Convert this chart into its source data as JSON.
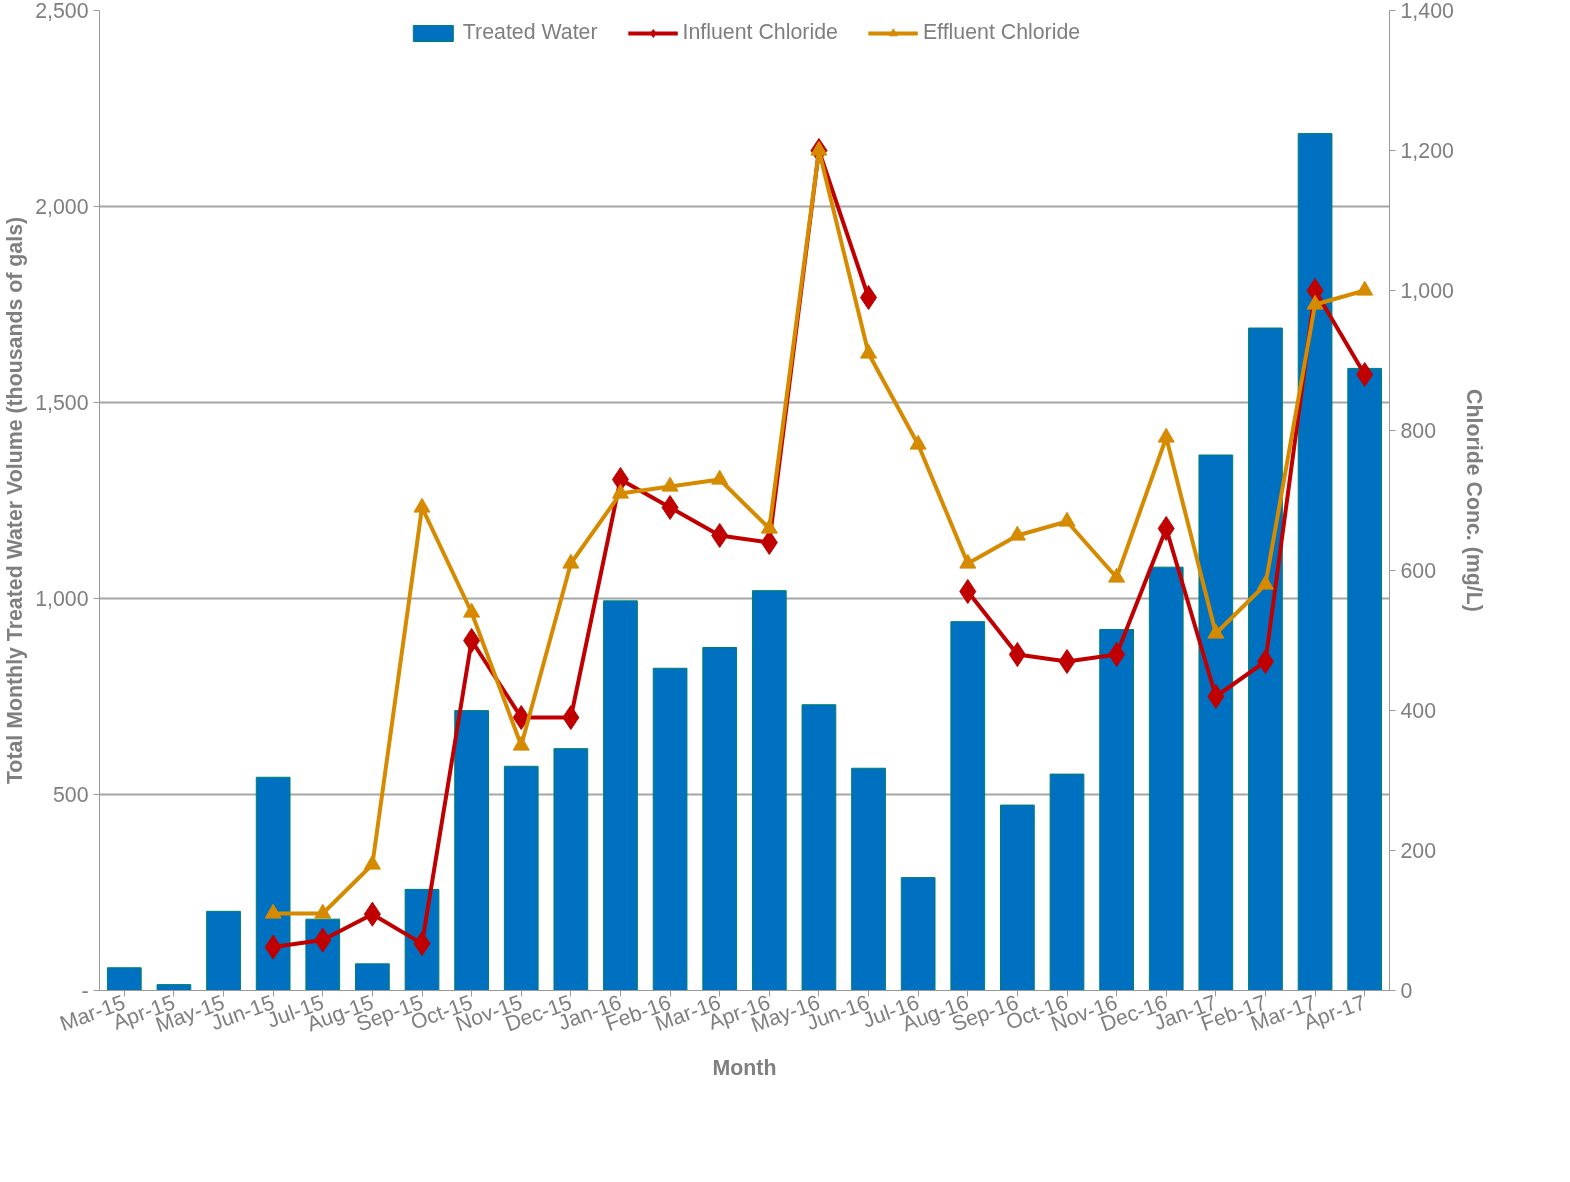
{
  "chart_data": {
    "type": "bar",
    "xlabel": "Month",
    "ylabel": "Total Monthly Treated Water Volume (thousands of gals)",
    "y2label": "Chloride Conc. (mg/L)",
    "categories": [
      "Mar-15",
      "Apr-15",
      "May-15",
      "Jun-15",
      "Jul-15",
      "Aug-15",
      "Sep-15",
      "Oct-15",
      "Nov-15",
      "Dec-15",
      "Jan-16",
      "Feb-16",
      "Mar-16",
      "Apr-16",
      "May-16",
      "Jun-16",
      "Jul-16",
      "Aug-16",
      "Sep-16",
      "Oct-16",
      "Nov-16",
      "Dec-16",
      "Jan-17",
      "Feb-17",
      "Mar-17",
      "Apr-17"
    ],
    "series": [
      {
        "name": "Treated Water",
        "color": "#0070c0",
        "values": [
          58,
          15,
          202,
          544,
          182,
          68,
          258,
          714,
          572,
          617,
          994,
          822,
          875,
          1020,
          729,
          567,
          288,
          941,
          473,
          552,
          921,
          1080,
          1366,
          1690,
          2186,
          1587
        ]
      },
      {
        "name": "Influent Chloride",
        "type": "line",
        "axis": "y2",
        "marker": "diamond",
        "color": "#c00000",
        "values": [
          null,
          null,
          null,
          62,
          72,
          109,
          67,
          500,
          390,
          390,
          730,
          690,
          650,
          640,
          1200,
          990,
          null,
          570,
          480,
          470,
          480,
          660,
          420,
          470,
          1000,
          880
        ]
      },
      {
        "name": "Effluent Chloride",
        "type": "line",
        "axis": "y2",
        "marker": "triangle",
        "color": "#d68a00",
        "values": [
          null,
          null,
          null,
          110,
          110,
          180,
          690,
          540,
          350,
          610,
          710,
          720,
          730,
          660,
          1200,
          910,
          780,
          610,
          650,
          670,
          590,
          790,
          510,
          580,
          980,
          1000
        ]
      }
    ],
    "ylim": [
      0,
      2500
    ],
    "yticks": [
      {
        "value": 0,
        "label": "-"
      },
      {
        "value": 500,
        "label": "500"
      },
      {
        "value": 1000,
        "label": "1,000"
      },
      {
        "value": 1500,
        "label": "1,500"
      },
      {
        "value": 2000,
        "label": "2,000"
      },
      {
        "value": 2500,
        "label": "2,500"
      }
    ],
    "y2lim": [
      0,
      1400
    ],
    "y2ticks": [
      0,
      200,
      400,
      600,
      800,
      {
        "value": 1000,
        "label": "1,000"
      },
      {
        "value": 1200,
        "label": "1,200"
      },
      {
        "value": 1400,
        "label": "1,400"
      }
    ],
    "grid": "y",
    "legend": "top",
    "line_style": "solid"
  }
}
